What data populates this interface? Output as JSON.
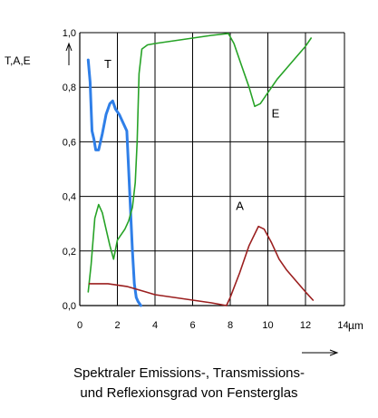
{
  "chart_data": {
    "type": "line",
    "ylabel": "T,A,E",
    "xlabel": "µm",
    "xlim": [
      0,
      14
    ],
    "ylim": [
      0,
      1.0
    ],
    "x_ticks": [
      "0",
      "2",
      "4",
      "6",
      "8",
      "10",
      "12",
      "14"
    ],
    "y_ticks": [
      "0,0",
      "0,2",
      "0,4",
      "0,6",
      "0,8",
      "1,0"
    ],
    "grid": true,
    "colors": {
      "T": "#2f7fe8",
      "E": "#27a327",
      "A": "#9b1f1f"
    },
    "series": [
      {
        "name": "T",
        "x": [
          0.45,
          0.55,
          0.65,
          0.75,
          0.85,
          1.0,
          1.2,
          1.4,
          1.6,
          1.75,
          1.9,
          2.1,
          2.3,
          2.5,
          2.6,
          2.7,
          2.8,
          2.9,
          3.0,
          3.1,
          3.25
        ],
        "y": [
          0.9,
          0.82,
          0.64,
          0.61,
          0.57,
          0.57,
          0.63,
          0.7,
          0.74,
          0.75,
          0.72,
          0.7,
          0.67,
          0.64,
          0.5,
          0.35,
          0.2,
          0.08,
          0.03,
          0.015,
          0.0
        ]
      },
      {
        "name": "E",
        "x": [
          0.45,
          0.6,
          0.8,
          1.0,
          1.2,
          1.4,
          1.6,
          1.8,
          2.0,
          2.2,
          2.4,
          2.6,
          2.8,
          2.95,
          3.05,
          3.15,
          3.3,
          3.6,
          4.0,
          5.0,
          6.0,
          7.0,
          7.9,
          8.2,
          8.6,
          9.0,
          9.3,
          9.6,
          10.0,
          10.5,
          11.0,
          11.5,
          12.0,
          12.3
        ],
        "y": [
          0.05,
          0.15,
          0.32,
          0.37,
          0.34,
          0.28,
          0.22,
          0.17,
          0.24,
          0.26,
          0.28,
          0.31,
          0.36,
          0.45,
          0.6,
          0.85,
          0.94,
          0.955,
          0.96,
          0.97,
          0.98,
          0.99,
          0.997,
          0.96,
          0.88,
          0.8,
          0.73,
          0.74,
          0.78,
          0.83,
          0.87,
          0.91,
          0.95,
          0.98
        ]
      },
      {
        "name": "A",
        "x": [
          0.5,
          1.5,
          2.0,
          2.5,
          3.0,
          3.5,
          4.0,
          5.0,
          6.0,
          7.0,
          7.8,
          8.0,
          8.5,
          9.0,
          9.5,
          9.8,
          10.2,
          10.6,
          11.0,
          11.5,
          12.0,
          12.4
        ],
        "y": [
          0.08,
          0.08,
          0.075,
          0.07,
          0.06,
          0.05,
          0.04,
          0.03,
          0.02,
          0.01,
          0.0,
          0.03,
          0.12,
          0.22,
          0.29,
          0.28,
          0.23,
          0.17,
          0.13,
          0.09,
          0.05,
          0.02
        ]
      }
    ]
  },
  "caption": {
    "line1": "Spektraler Emissions-, Transmissions-",
    "line2": "und Reflexionsgrad von Fensterglas"
  }
}
